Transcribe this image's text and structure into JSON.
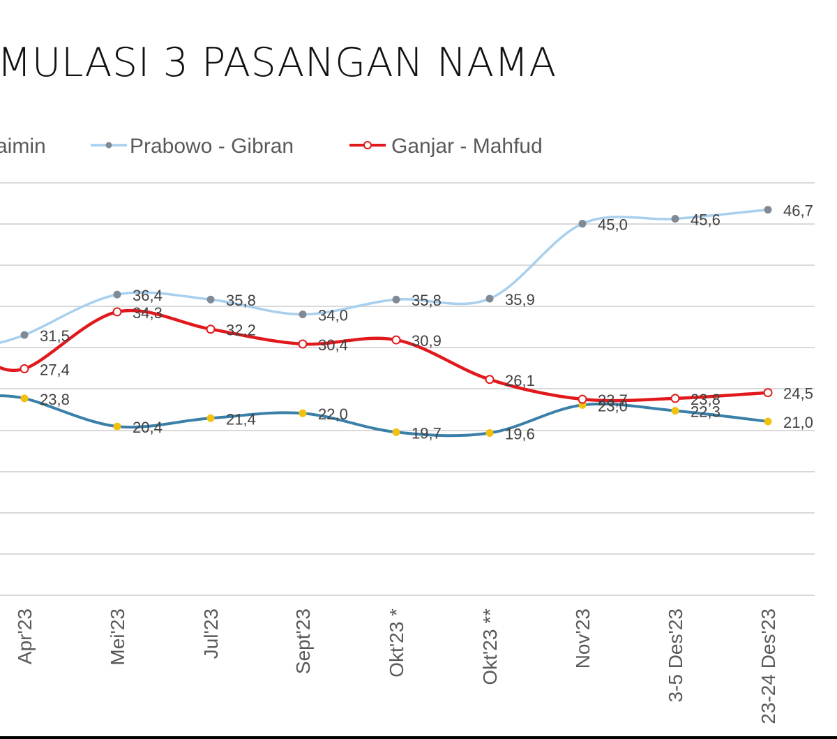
{
  "title": "MULASI 3 PASANGAN NAMA",
  "legend": [
    {
      "name": "aimin",
      "color": "#3a7fa8",
      "marker": "#f2c10f"
    },
    {
      "name": "Prabowo - Gibran",
      "color": "#a8d0ee",
      "marker": "#7f8a94"
    },
    {
      "name": "Ganjar - Mahfud",
      "color": "#e1191c",
      "marker": "#ffffff"
    }
  ],
  "chart_data": {
    "type": "line",
    "title": "MULASI 3 PASANGAN NAMA",
    "xlabel": "",
    "ylabel": "",
    "ylim": [
      0,
      50
    ],
    "grid": true,
    "legend_position": "top",
    "categories": [
      "",
      "Apr'23",
      "Mei'23",
      "Jul'23",
      "Sept'23",
      "Okt'23 *",
      "Okt'23 **",
      "Nov'23",
      "3-5 Des'23",
      "23-24 Des'23"
    ],
    "series": [
      {
        "name": "aimin",
        "color": "#3a7fa8",
        "marker_color": "#f2c10f",
        "values": [
          24.0,
          23.8,
          20.4,
          21.4,
          22.0,
          19.7,
          19.6,
          23.0,
          22.3,
          21.0
        ],
        "labels": [
          "",
          "23,8",
          "20,4",
          "21,4",
          "22,0",
          "19,7",
          "19,6",
          "23,0",
          "22,3",
          "21,0"
        ]
      },
      {
        "name": "Prabowo - Gibran",
        "color": "#a8d0ee",
        "marker_color": "#7f8a94",
        "values": [
          30.0,
          31.5,
          36.4,
          35.8,
          34.0,
          35.8,
          35.9,
          45.0,
          45.6,
          46.7
        ],
        "labels": [
          "",
          "31,5",
          "36,4",
          "35,8",
          "34,0",
          "35,8",
          "35,9",
          "45,0",
          "45,6",
          "46,7"
        ]
      },
      {
        "name": "Ganjar - Mahfud",
        "color": "#e1191c",
        "marker_color": "#ffffff",
        "values": [
          29.0,
          27.4,
          34.3,
          32.2,
          30.4,
          30.9,
          26.1,
          23.7,
          23.8,
          24.5
        ],
        "labels": [
          "",
          "27,4",
          "34,3",
          "32,2",
          "30,4",
          "30,9",
          "26,1",
          "23,7",
          "23,8",
          "24,5"
        ]
      }
    ]
  }
}
